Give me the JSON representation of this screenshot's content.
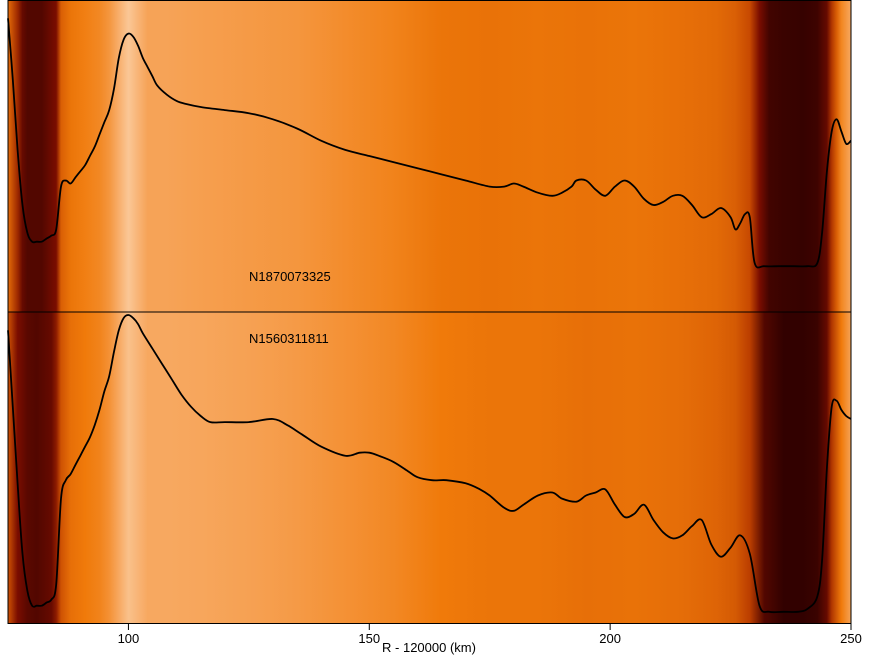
{
  "chart_data": {
    "type": "line",
    "xlabel": "R - 120000 (km)",
    "xlim": [
      75,
      250
    ],
    "x_ticks": [
      100,
      150,
      200,
      250
    ],
    "x_tick_labels": [
      "100",
      "150",
      "200",
      "250"
    ],
    "colormap": [
      "#2a0000",
      "#7a0d00",
      "#c24400",
      "#f07a0a",
      "#f7a860",
      "#fde6cc"
    ],
    "panels": [
      {
        "label": "N1870073325",
        "background": [
          [
            75,
            0.55
          ],
          [
            77,
            0.3
          ],
          [
            78,
            0.15
          ],
          [
            79,
            0.1
          ],
          [
            82,
            0.1
          ],
          [
            85,
            0.2
          ],
          [
            86,
            0.5
          ],
          [
            88,
            0.58
          ],
          [
            91,
            0.62
          ],
          [
            94,
            0.66
          ],
          [
            96,
            0.72
          ],
          [
            98,
            0.82
          ],
          [
            100,
            0.9
          ],
          [
            102,
            0.84
          ],
          [
            104,
            0.78
          ],
          [
            108,
            0.78
          ],
          [
            115,
            0.76
          ],
          [
            125,
            0.74
          ],
          [
            135,
            0.72
          ],
          [
            145,
            0.68
          ],
          [
            155,
            0.64
          ],
          [
            165,
            0.58
          ],
          [
            175,
            0.57
          ],
          [
            185,
            0.58
          ],
          [
            195,
            0.57
          ],
          [
            205,
            0.58
          ],
          [
            215,
            0.56
          ],
          [
            222,
            0.54
          ],
          [
            226,
            0.5
          ],
          [
            229,
            0.42
          ],
          [
            231,
            0.2
          ],
          [
            233,
            0.06
          ],
          [
            236,
            0.04
          ],
          [
            240,
            0.03
          ],
          [
            243,
            0.05
          ],
          [
            245,
            0.15
          ],
          [
            246,
            0.35
          ],
          [
            247,
            0.5
          ],
          [
            248,
            0.65
          ],
          [
            250,
            0.8
          ]
        ],
        "series": [
          {
            "x": [
              75,
              76,
              77,
              78,
              79,
              80,
              81,
              82,
              83,
              84,
              85,
              86,
              87,
              88,
              89,
              90,
              91,
              92,
              93,
              94,
              95,
              96,
              97,
              98,
              99,
              100,
              101,
              102,
              103,
              104,
              105,
              106,
              108,
              110,
              112,
              115,
              120,
              125,
              130,
              135,
              140,
              145,
              150,
              155,
              160,
              165,
              170,
              175,
              178,
              180,
              182,
              185,
              188,
              190,
              192,
              193,
              195,
              197,
              199,
              201,
              203,
              205,
              207,
              209,
              211,
              213,
              215,
              217,
              219,
              221,
              223,
              225,
              226,
              227,
              228,
              229,
              230,
              232,
              235,
              238,
              241,
              243,
              244,
              245,
              246,
              247,
              248,
              249,
              250
            ],
            "y": [
              0.05,
              0.25,
              0.48,
              0.66,
              0.75,
              0.78,
              0.78,
              0.78,
              0.77,
              0.76,
              0.74,
              0.6,
              0.58,
              0.59,
              0.57,
              0.55,
              0.53,
              0.5,
              0.47,
              0.43,
              0.39,
              0.35,
              0.28,
              0.18,
              0.12,
              0.1,
              0.11,
              0.14,
              0.18,
              0.21,
              0.24,
              0.27,
              0.3,
              0.32,
              0.33,
              0.34,
              0.35,
              0.36,
              0.38,
              0.41,
              0.45,
              0.48,
              0.5,
              0.52,
              0.54,
              0.56,
              0.58,
              0.6,
              0.6,
              0.59,
              0.6,
              0.62,
              0.63,
              0.62,
              0.6,
              0.58,
              0.58,
              0.61,
              0.63,
              0.6,
              0.58,
              0.6,
              0.64,
              0.66,
              0.65,
              0.63,
              0.63,
              0.66,
              0.7,
              0.69,
              0.67,
              0.7,
              0.74,
              0.72,
              0.69,
              0.7,
              0.85,
              0.86,
              0.86,
              0.86,
              0.86,
              0.85,
              0.75,
              0.55,
              0.42,
              0.38,
              0.42,
              0.46,
              0.45
            ]
          }
        ]
      },
      {
        "label": "N1560311811",
        "background": [
          [
            75,
            0.45
          ],
          [
            77,
            0.2
          ],
          [
            79,
            0.12
          ],
          [
            81,
            0.1
          ],
          [
            84,
            0.15
          ],
          [
            85,
            0.25
          ],
          [
            86,
            0.45
          ],
          [
            88,
            0.56
          ],
          [
            91,
            0.6
          ],
          [
            94,
            0.64
          ],
          [
            96,
            0.7
          ],
          [
            98,
            0.8
          ],
          [
            100,
            0.88
          ],
          [
            102,
            0.84
          ],
          [
            104,
            0.8
          ],
          [
            108,
            0.8
          ],
          [
            115,
            0.79
          ],
          [
            125,
            0.77
          ],
          [
            135,
            0.74
          ],
          [
            145,
            0.7
          ],
          [
            155,
            0.66
          ],
          [
            165,
            0.6
          ],
          [
            175,
            0.58
          ],
          [
            185,
            0.58
          ],
          [
            195,
            0.56
          ],
          [
            205,
            0.57
          ],
          [
            215,
            0.55
          ],
          [
            222,
            0.52
          ],
          [
            226,
            0.48
          ],
          [
            229,
            0.38
          ],
          [
            232,
            0.1
          ],
          [
            236,
            0.02
          ],
          [
            240,
            0.02
          ],
          [
            243,
            0.04
          ],
          [
            245,
            0.15
          ],
          [
            246,
            0.35
          ],
          [
            248,
            0.6
          ],
          [
            250,
            0.78
          ]
        ],
        "series": [
          {
            "x": [
              75,
              76,
              77,
              78,
              79,
              80,
              81,
              82,
              83,
              84,
              85,
              86,
              87,
              88,
              89,
              90,
              91,
              92,
              93,
              94,
              95,
              96,
              97,
              98,
              99,
              100,
              101,
              102,
              103,
              105,
              107,
              109,
              111,
              113,
              115,
              117,
              120,
              125,
              130,
              133,
              136,
              140,
              145,
              148,
              150,
              152,
              155,
              158,
              160,
              163,
              166,
              170,
              173,
              175,
              178,
              180,
              182,
              185,
              188,
              190,
              193,
              195,
              197,
              199,
              201,
              203,
              205,
              207,
              209,
              211,
              213,
              215,
              217,
              219,
              221,
              223,
              225,
              227,
              229,
              231,
              233,
              236,
              239,
              241,
              243,
              244,
              245,
              246,
              247,
              248,
              249,
              250
            ],
            "y": [
              0.05,
              0.3,
              0.55,
              0.78,
              0.9,
              0.95,
              0.95,
              0.95,
              0.94,
              0.93,
              0.88,
              0.6,
              0.54,
              0.52,
              0.49,
              0.46,
              0.43,
              0.4,
              0.36,
              0.31,
              0.25,
              0.2,
              0.12,
              0.05,
              0.01,
              0.0,
              0.01,
              0.03,
              0.06,
              0.11,
              0.16,
              0.21,
              0.26,
              0.3,
              0.33,
              0.35,
              0.35,
              0.35,
              0.34,
              0.36,
              0.39,
              0.43,
              0.46,
              0.45,
              0.45,
              0.46,
              0.48,
              0.51,
              0.53,
              0.54,
              0.54,
              0.55,
              0.57,
              0.59,
              0.63,
              0.64,
              0.62,
              0.59,
              0.58,
              0.6,
              0.61,
              0.59,
              0.58,
              0.57,
              0.62,
              0.66,
              0.65,
              0.62,
              0.67,
              0.71,
              0.73,
              0.72,
              0.69,
              0.67,
              0.75,
              0.79,
              0.76,
              0.72,
              0.78,
              0.95,
              0.97,
              0.97,
              0.97,
              0.96,
              0.92,
              0.8,
              0.5,
              0.3,
              0.28,
              0.31,
              0.33,
              0.34
            ]
          }
        ]
      }
    ]
  }
}
